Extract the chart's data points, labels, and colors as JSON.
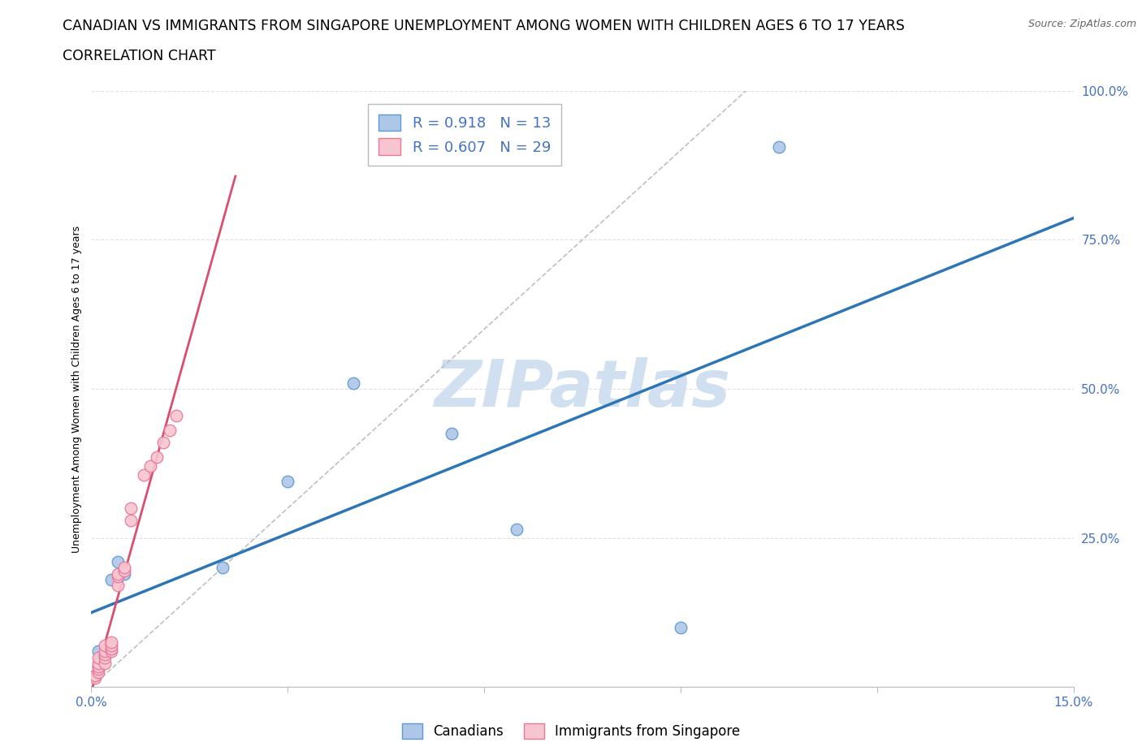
{
  "title_line1": "CANADIAN VS IMMIGRANTS FROM SINGAPORE UNEMPLOYMENT AMONG WOMEN WITH CHILDREN AGES 6 TO 17 YEARS",
  "title_line2": "CORRELATION CHART",
  "source": "Source: ZipAtlas.com",
  "ylabel": "Unemployment Among Women with Children Ages 6 to 17 years",
  "xlim": [
    0.0,
    0.15
  ],
  "ylim": [
    0.0,
    1.0
  ],
  "xticks": [
    0.0,
    0.03,
    0.06,
    0.09,
    0.12,
    0.15
  ],
  "xtick_labels": [
    "0.0%",
    "",
    "",
    "",
    "",
    "15.0%"
  ],
  "ytick_labels": [
    "",
    "25.0%",
    "50.0%",
    "75.0%",
    "100.0%"
  ],
  "yticks": [
    0.0,
    0.25,
    0.5,
    0.75,
    1.0
  ],
  "canadian_color": "#aec6e8",
  "canadian_edge_color": "#5b9bd5",
  "singapore_color": "#f7c5d0",
  "singapore_edge_color": "#e8789a",
  "canadian_line_color": "#2e75b6",
  "singapore_line_color": "#d94f6e",
  "identity_line_color": "#c0c0c0",
  "canadian_R": "0.918",
  "canadian_N": "13",
  "singapore_R": "0.607",
  "singapore_N": "29",
  "watermark": "ZIPatlas",
  "watermark_color": "#d0e0f0",
  "legend_label_canadian": "Canadians",
  "legend_label_singapore": "Immigrants from Singapore",
  "canadian_x": [
    0.001,
    0.001,
    0.002,
    0.003,
    0.004,
    0.005,
    0.02,
    0.03,
    0.04,
    0.055,
    0.065,
    0.09,
    0.105
  ],
  "canadian_y": [
    0.035,
    0.06,
    0.055,
    0.18,
    0.21,
    0.19,
    0.2,
    0.345,
    0.51,
    0.425,
    0.265,
    0.1,
    0.905
  ],
  "singapore_x": [
    0.0005,
    0.0005,
    0.001,
    0.001,
    0.001,
    0.001,
    0.001,
    0.002,
    0.002,
    0.002,
    0.002,
    0.002,
    0.003,
    0.003,
    0.003,
    0.003,
    0.004,
    0.004,
    0.004,
    0.005,
    0.005,
    0.006,
    0.006,
    0.008,
    0.009,
    0.01,
    0.011,
    0.012,
    0.013
  ],
  "singapore_y": [
    0.015,
    0.02,
    0.025,
    0.03,
    0.035,
    0.04,
    0.05,
    0.04,
    0.05,
    0.055,
    0.06,
    0.07,
    0.06,
    0.065,
    0.07,
    0.075,
    0.17,
    0.185,
    0.19,
    0.195,
    0.2,
    0.28,
    0.3,
    0.355,
    0.37,
    0.385,
    0.41,
    0.43,
    0.455
  ],
  "singapore_line_x_end": 0.022,
  "marker_size": 110,
  "grid_color": "#e0e0e0",
  "background_color": "#ffffff",
  "title_fontsize": 12.5,
  "axis_label_fontsize": 9,
  "tick_fontsize": 11,
  "tick_color": "#4472c4",
  "legend_fontsize": 13,
  "legend_text_color": "#4472c4"
}
